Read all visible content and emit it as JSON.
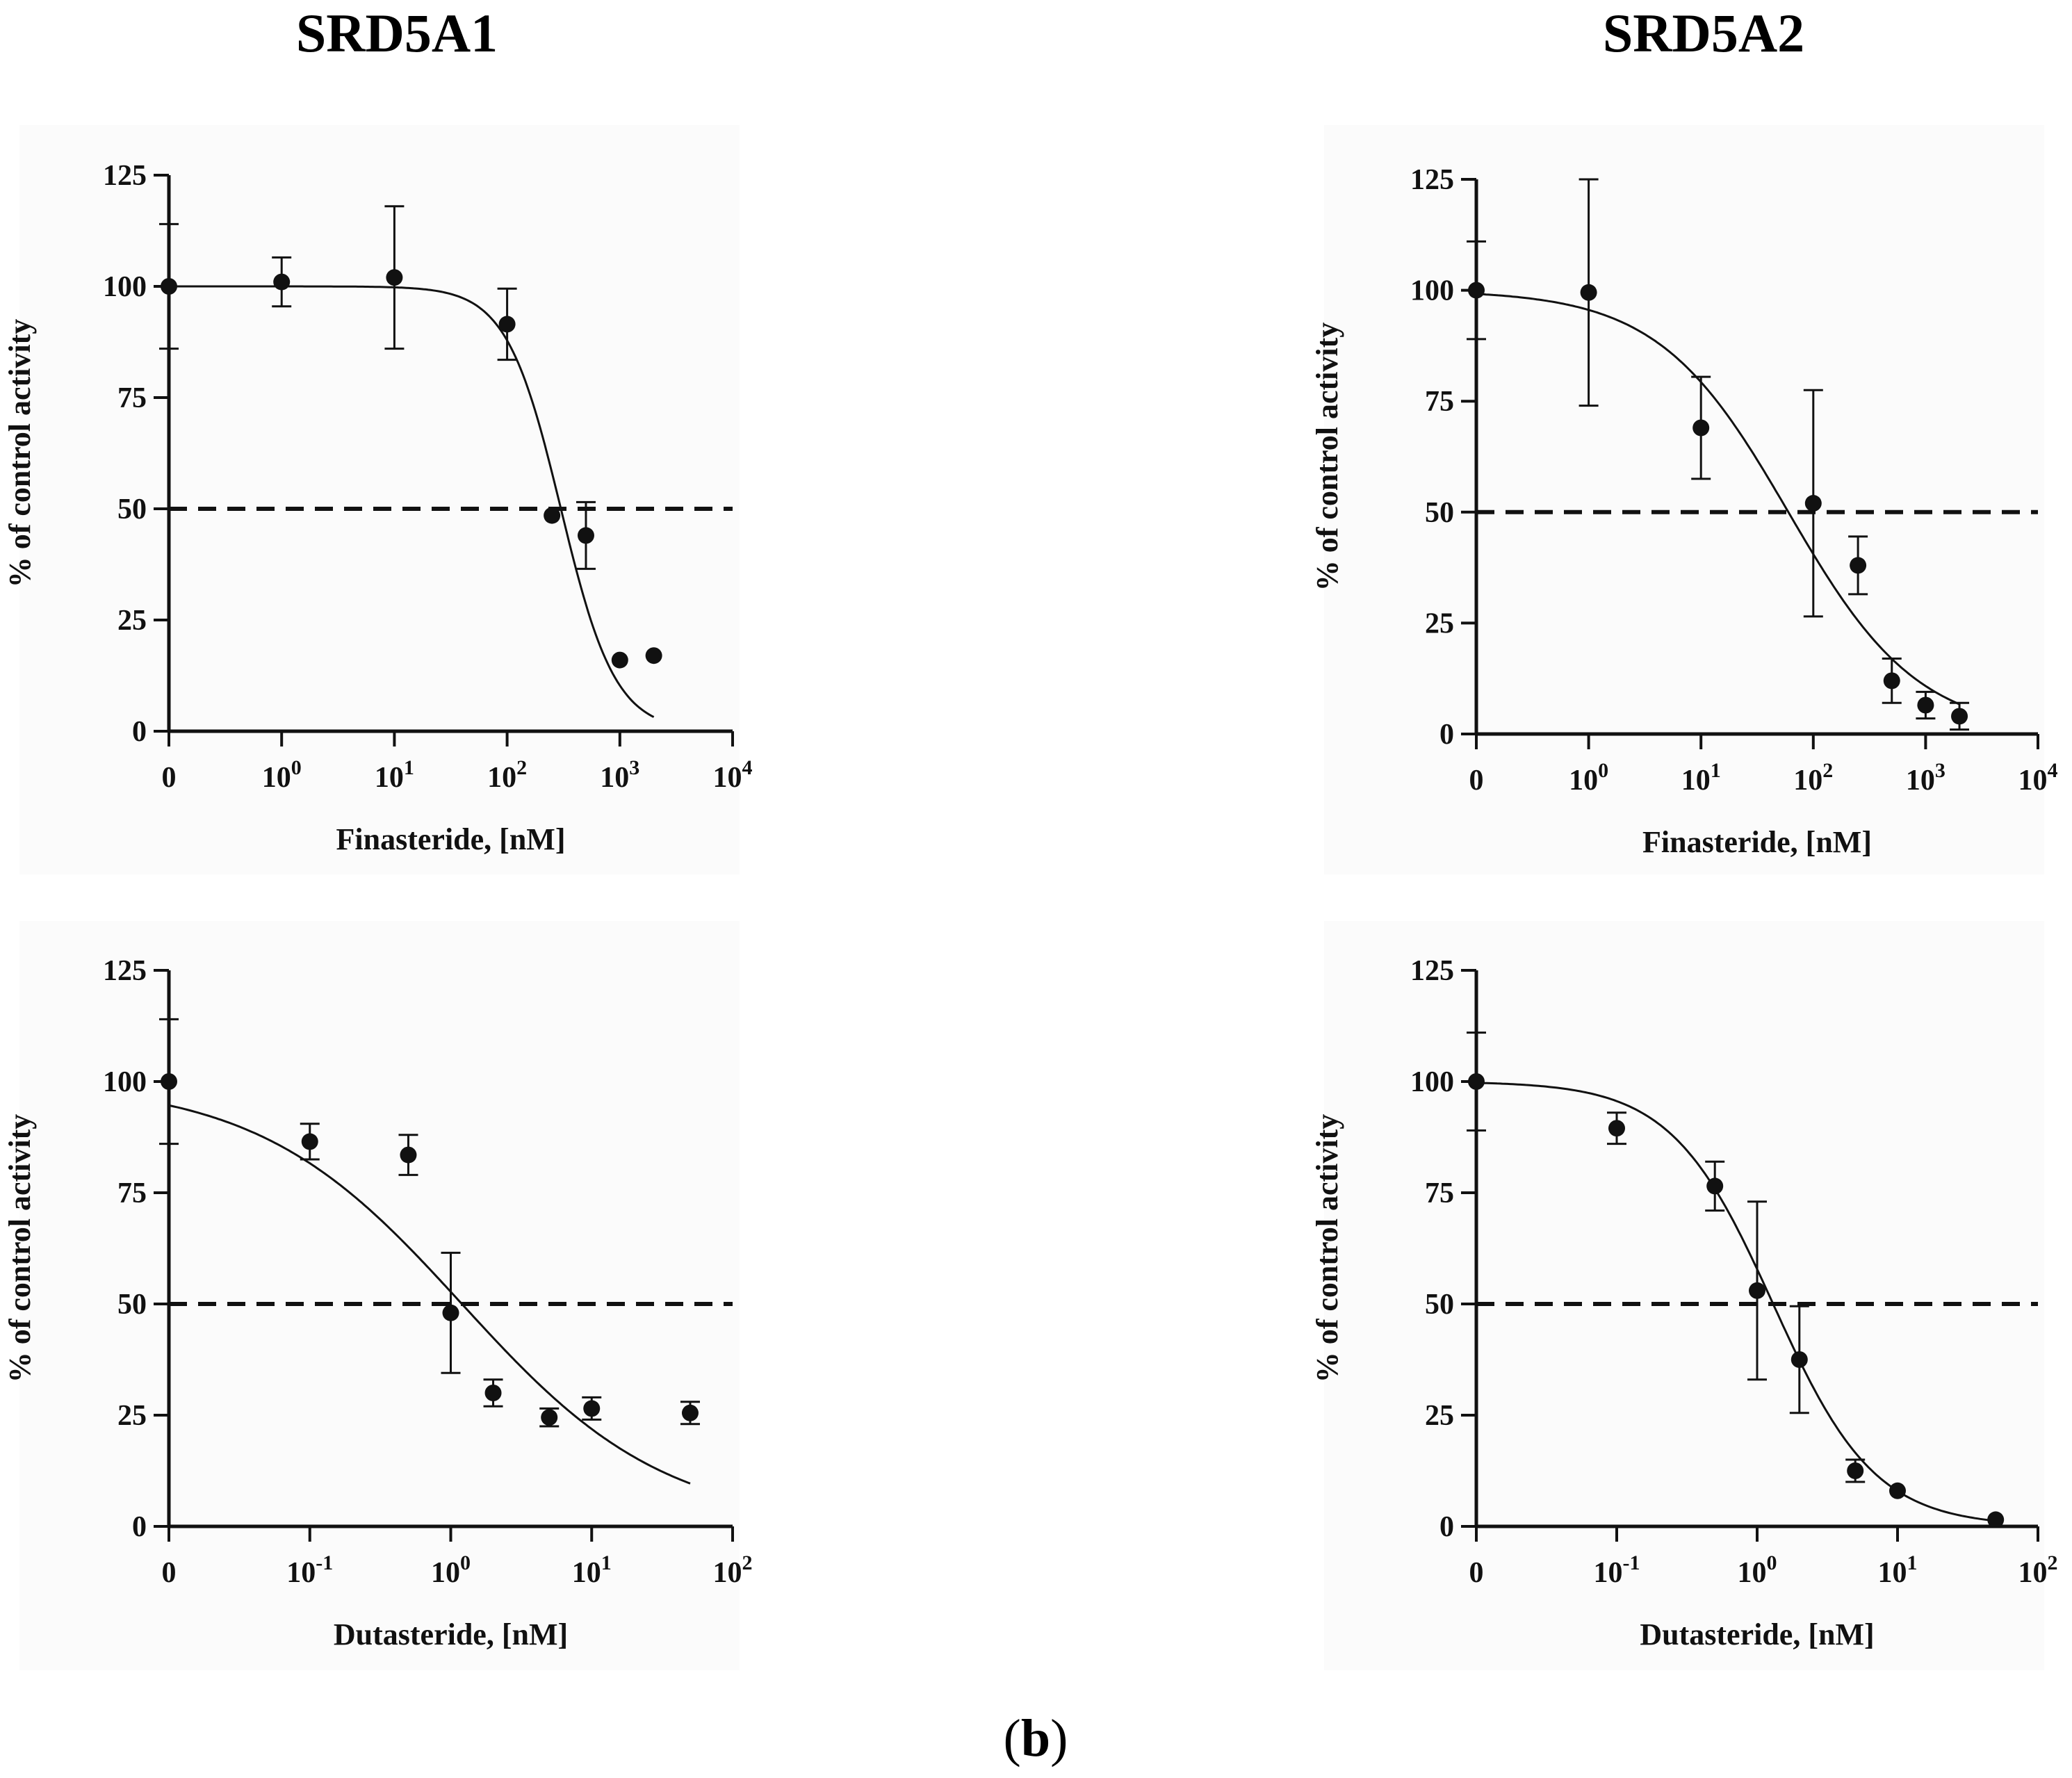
{
  "figure": {
    "panel_label_open": "(",
    "panel_label_letter": "b",
    "panel_label_close": ")"
  },
  "colors": {
    "ink": "#111111",
    "panel_bg": "#fbfbfb",
    "page_bg": "#ffffff"
  },
  "column_titles": [
    "SRD5A1",
    "SRD5A2"
  ],
  "chart_data": [
    {
      "id": "srd5a1-finasteride",
      "type": "scatter",
      "title": "SRD5A1",
      "xlabel": "Finasteride, [nM]",
      "ylabel": "% of control activity",
      "xscale": "log",
      "xticks": [
        {
          "base": "0",
          "exp": ""
        },
        {
          "base": "10",
          "exp": "0"
        },
        {
          "base": "10",
          "exp": "1"
        },
        {
          "base": "10",
          "exp": "2"
        },
        {
          "base": "10",
          "exp": "3"
        },
        {
          "base": "10",
          "exp": "4"
        }
      ],
      "x_first_decade": 0,
      "yticks": [
        "0",
        "25",
        "50",
        "75",
        "100",
        "125"
      ],
      "ylim": [
        0,
        125
      ],
      "reference_line": 50,
      "points": [
        {
          "x": 0,
          "y": 100,
          "err": 14,
          "zero": true
        },
        {
          "x": 1,
          "y": 101,
          "err": 5.5
        },
        {
          "x": 10,
          "y": 102,
          "err": 16
        },
        {
          "x": 100,
          "y": 91.5,
          "err": 8
        },
        {
          "x": 250,
          "y": 48.5,
          "err": 0
        },
        {
          "x": 500,
          "y": 44,
          "err": 7.5
        },
        {
          "x": 1000,
          "y": 16,
          "err": 0
        },
        {
          "x": 2000,
          "y": 17,
          "err": 0
        }
      ],
      "fit": {
        "top": 100,
        "bottom": 0,
        "ic50": 300,
        "hill": 1.8,
        "x_start": 0.1,
        "x_end": 2000
      }
    },
    {
      "id": "srd5a2-finasteride",
      "type": "scatter",
      "title": "SRD5A2",
      "xlabel": "Finasteride, [nM]",
      "ylabel": "% of control activity",
      "xscale": "log",
      "xticks": [
        {
          "base": "0",
          "exp": ""
        },
        {
          "base": "10",
          "exp": "0"
        },
        {
          "base": "10",
          "exp": "1"
        },
        {
          "base": "10",
          "exp": "2"
        },
        {
          "base": "10",
          "exp": "3"
        },
        {
          "base": "10",
          "exp": "4"
        }
      ],
      "x_first_decade": 0,
      "yticks": [
        "0",
        "25",
        "50",
        "75",
        "100",
        "125"
      ],
      "ylim": [
        0,
        125
      ],
      "reference_line": 50,
      "points": [
        {
          "x": 0,
          "y": 100,
          "err": 11,
          "zero": true
        },
        {
          "x": 1,
          "y": 99.5,
          "err": 25.5
        },
        {
          "x": 10,
          "y": 69,
          "err": 11.5
        },
        {
          "x": 100,
          "y": 52,
          "err": 25.5
        },
        {
          "x": 250,
          "y": 38,
          "err": 6.5
        },
        {
          "x": 500,
          "y": 12,
          "err": 5
        },
        {
          "x": 1000,
          "y": 6.5,
          "err": 3
        },
        {
          "x": 2000,
          "y": 4,
          "err": 3
        }
      ],
      "fit": {
        "top": 100,
        "bottom": 0,
        "ic50": 60,
        "hill": 0.75,
        "x_start": 0.1,
        "x_end": 2000
      }
    },
    {
      "id": "srd5a1-dutasteride",
      "type": "scatter",
      "title": "SRD5A1",
      "xlabel": "Dutasteride, [nM]",
      "ylabel": "% of control activity",
      "xscale": "log",
      "xticks": [
        {
          "base": "0",
          "exp": ""
        },
        {
          "base": "10",
          "exp": "-1"
        },
        {
          "base": "10",
          "exp": "0"
        },
        {
          "base": "10",
          "exp": "1"
        },
        {
          "base": "10",
          "exp": "2"
        }
      ],
      "x_first_decade": -1,
      "yticks": [
        "0",
        "25",
        "50",
        "75",
        "100",
        "125"
      ],
      "ylim": [
        0,
        125
      ],
      "reference_line": 50,
      "points": [
        {
          "x": 0,
          "y": 100,
          "err": 14,
          "zero": true
        },
        {
          "x": 0.1,
          "y": 86.5,
          "err": 4
        },
        {
          "x": 0.5,
          "y": 83.5,
          "err": 4.5
        },
        {
          "x": 1,
          "y": 48,
          "err": 13.5
        },
        {
          "x": 2,
          "y": 30,
          "err": 3
        },
        {
          "x": 5,
          "y": 24.5,
          "err": 2
        },
        {
          "x": 10,
          "y": 26.5,
          "err": 2.5
        },
        {
          "x": 50,
          "y": 25.5,
          "err": 2.5
        }
      ],
      "fit": {
        "top": 100,
        "bottom": 0,
        "ic50": 1.2,
        "hill": 0.6,
        "x_start": 0.01,
        "x_end": 50
      }
    },
    {
      "id": "srd5a2-dutasteride",
      "type": "scatter",
      "title": "SRD5A2",
      "xlabel": "Dutasteride, [nM]",
      "ylabel": "% of control activity",
      "xscale": "log",
      "xticks": [
        {
          "base": "0",
          "exp": ""
        },
        {
          "base": "10",
          "exp": "-1"
        },
        {
          "base": "10",
          "exp": "0"
        },
        {
          "base": "10",
          "exp": "1"
        },
        {
          "base": "10",
          "exp": "2"
        }
      ],
      "x_first_decade": -1,
      "yticks": [
        "0",
        "25",
        "50",
        "75",
        "100",
        "125"
      ],
      "ylim": [
        0,
        125
      ],
      "reference_line": 50,
      "points": [
        {
          "x": 0,
          "y": 100,
          "err": 11,
          "zero": true
        },
        {
          "x": 0.1,
          "y": 89.5,
          "err": 3.5
        },
        {
          "x": 0.5,
          "y": 76.5,
          "err": 5.5
        },
        {
          "x": 1,
          "y": 53,
          "err": 20
        },
        {
          "x": 2,
          "y": 37.5,
          "err": 12
        },
        {
          "x": 5,
          "y": 12.5,
          "err": 2.5
        },
        {
          "x": 10,
          "y": 8,
          "err": 0
        },
        {
          "x": 50,
          "y": 1.5,
          "err": 0
        }
      ],
      "fit": {
        "top": 100,
        "bottom": 0,
        "ic50": 1.3,
        "hill": 1.2,
        "x_start": 0.01,
        "x_end": 50
      }
    }
  ]
}
